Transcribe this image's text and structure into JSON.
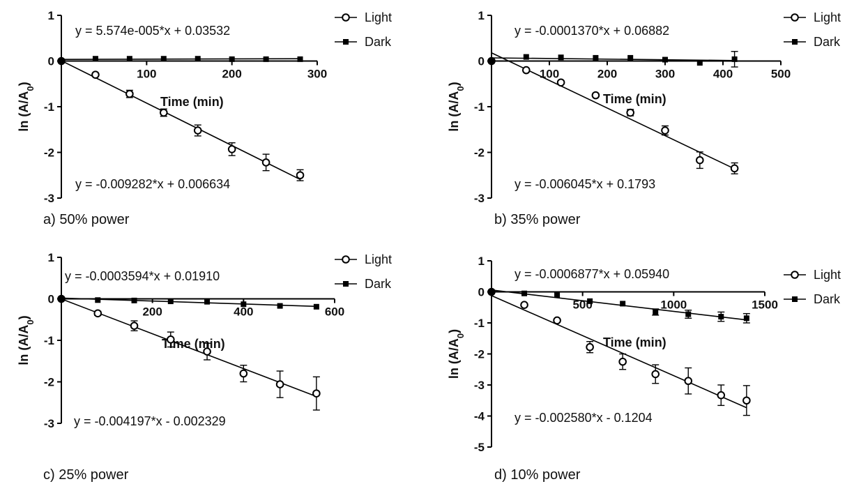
{
  "chart_data": [
    {
      "id": "a",
      "type": "scatter",
      "caption": "a) 50% power",
      "xlabel": "Time (min)",
      "ylabel": "ln (A/A0)",
      "ylabel_main": "ln (A/A",
      "ylabel_sub": "0",
      "ylabel_close": ")",
      "xlim": [
        0,
        300
      ],
      "ylim": [
        -3,
        1
      ],
      "xticks": [
        100,
        200,
        300
      ],
      "yticks": [
        1,
        0,
        -1,
        -2,
        -3
      ],
      "legend": [
        "Light",
        "Dark"
      ],
      "series": [
        {
          "name": "Light",
          "marker": "open-circle",
          "x": [
            0,
            40,
            80,
            120,
            160,
            200,
            240,
            280
          ],
          "y": [
            0,
            -0.3,
            -0.72,
            -1.13,
            -1.52,
            -1.93,
            -2.22,
            -2.5
          ],
          "err": [
            0,
            0,
            0.08,
            0.08,
            0.12,
            0.14,
            0.18,
            0.12
          ],
          "fit": {
            "slope": -0.009282,
            "intercept": 0.006634
          },
          "equation": "y = -0.009282*x + 0.006634"
        },
        {
          "name": "Dark",
          "marker": "filled-square",
          "x": [
            0,
            40,
            80,
            120,
            160,
            200,
            240,
            280
          ],
          "y": [
            0,
            0.05,
            0.05,
            0.05,
            0.05,
            0.04,
            0.04,
            0.04
          ],
          "err": [
            0,
            0,
            0,
            0,
            0,
            0,
            0,
            0
          ],
          "fit": {
            "slope": 5.574e-05,
            "intercept": 0.03532
          },
          "equation": "y = 5.574e-005*x + 0.03532"
        }
      ]
    },
    {
      "id": "b",
      "type": "scatter",
      "caption": "b) 35% power",
      "xlabel": "Time (min)",
      "ylabel": "ln (A/A0)",
      "ylabel_main": "ln (A/A",
      "ylabel_sub": "0",
      "ylabel_close": ")",
      "xlim": [
        0,
        500
      ],
      "ylim": [
        -3,
        1
      ],
      "xticks": [
        100,
        200,
        300,
        400,
        500
      ],
      "yticks": [
        1,
        0,
        -1,
        -2,
        -3
      ],
      "legend": [
        "Light",
        "Dark"
      ],
      "series": [
        {
          "name": "Light",
          "marker": "open-circle",
          "x": [
            0,
            60,
            120,
            180,
            240,
            300,
            360,
            420
          ],
          "y": [
            0,
            -0.2,
            -0.47,
            -0.75,
            -1.13,
            -1.52,
            -2.17,
            -2.35
          ],
          "err": [
            0,
            0,
            0,
            0,
            0.07,
            0.1,
            0.18,
            0.12
          ],
          "fit": {
            "slope": -0.006045,
            "intercept": 0.1793
          },
          "equation": "y = -0.006045*x + 0.1793"
        },
        {
          "name": "Dark",
          "marker": "filled-square",
          "x": [
            0,
            60,
            120,
            180,
            240,
            300,
            360,
            420
          ],
          "y": [
            0,
            0.09,
            0.08,
            0.07,
            0.07,
            0.03,
            -0.04,
            0.04
          ],
          "err": [
            0,
            0,
            0,
            0,
            0,
            0,
            0,
            0.17
          ],
          "fit": {
            "slope": -0.000137,
            "intercept": 0.06882
          },
          "equation": "y = -0.0001370*x + 0.06882"
        }
      ]
    },
    {
      "id": "c",
      "type": "scatter",
      "caption": "c) 25% power",
      "xlabel": "Time (min)",
      "ylabel": "ln (A/A0)",
      "ylabel_main": "ln (A/A",
      "ylabel_sub": "0",
      "ylabel_close": ")",
      "xlim": [
        0,
        600
      ],
      "ylim": [
        -3,
        1
      ],
      "xticks": [
        200,
        400,
        600
      ],
      "yticks": [
        1,
        0,
        -1,
        -2,
        -3
      ],
      "legend": [
        "Light",
        "Dark"
      ],
      "series": [
        {
          "name": "Light",
          "marker": "open-circle",
          "x": [
            0,
            80,
            160,
            240,
            320,
            400,
            480,
            560
          ],
          "y": [
            0,
            -0.35,
            -0.65,
            -0.98,
            -1.27,
            -1.8,
            -2.06,
            -2.28
          ],
          "err": [
            0,
            0.05,
            0.12,
            0.18,
            0.2,
            0.2,
            0.32,
            0.4
          ],
          "fit": {
            "slope": -0.004197,
            "intercept": -0.002329
          },
          "equation": "y = -0.004197*x - 0.002329"
        },
        {
          "name": "Dark",
          "marker": "filled-square",
          "x": [
            0,
            80,
            160,
            240,
            320,
            400,
            480,
            560
          ],
          "y": [
            0,
            -0.03,
            -0.04,
            -0.06,
            -0.07,
            -0.13,
            -0.17,
            -0.19
          ],
          "err": [
            0,
            0,
            0,
            0,
            0,
            0,
            0,
            0
          ],
          "fit": {
            "slope": -0.0003594,
            "intercept": 0.0191
          },
          "equation": "y = -0.0003594*x + 0.01910"
        }
      ]
    },
    {
      "id": "d",
      "type": "scatter",
      "caption": "d) 10% power",
      "xlabel": "Time (min)",
      "ylabel": "ln (A/A0)",
      "ylabel_main": "ln (A/A",
      "ylabel_sub": "0",
      "ylabel_close": ")",
      "xlim": [
        0,
        1500
      ],
      "ylim": [
        -5,
        1
      ],
      "xticks": [
        500,
        1000,
        1500
      ],
      "yticks": [
        1,
        0,
        -1,
        -2,
        -3,
        -4,
        -5
      ],
      "legend": [
        "Light",
        "Dark"
      ],
      "series": [
        {
          "name": "Light",
          "marker": "open-circle",
          "x": [
            0,
            180,
            360,
            540,
            720,
            900,
            1080,
            1260,
            1400
          ],
          "y": [
            0,
            -0.42,
            -0.92,
            -1.78,
            -2.25,
            -2.65,
            -2.87,
            -3.33,
            -3.5
          ],
          "err": [
            0,
            0,
            0,
            0.18,
            0.25,
            0.3,
            0.42,
            0.33,
            0.48
          ],
          "fit": {
            "slope": -0.00258,
            "intercept": -0.1204
          },
          "equation": "y = -0.002580*x - 0.1204"
        },
        {
          "name": "Dark",
          "marker": "filled-square",
          "x": [
            0,
            180,
            360,
            540,
            720,
            900,
            1080,
            1260,
            1400
          ],
          "y": [
            0,
            -0.05,
            -0.1,
            -0.3,
            -0.38,
            -0.65,
            -0.72,
            -0.8,
            -0.85
          ],
          "err": [
            0,
            0,
            0,
            0,
            0,
            0.1,
            0.13,
            0.15,
            0.15
          ],
          "fit": {
            "slope": -0.0006877,
            "intercept": 0.0594
          },
          "equation": "y = -0.0006877*x + 0.05940"
        }
      ]
    }
  ]
}
